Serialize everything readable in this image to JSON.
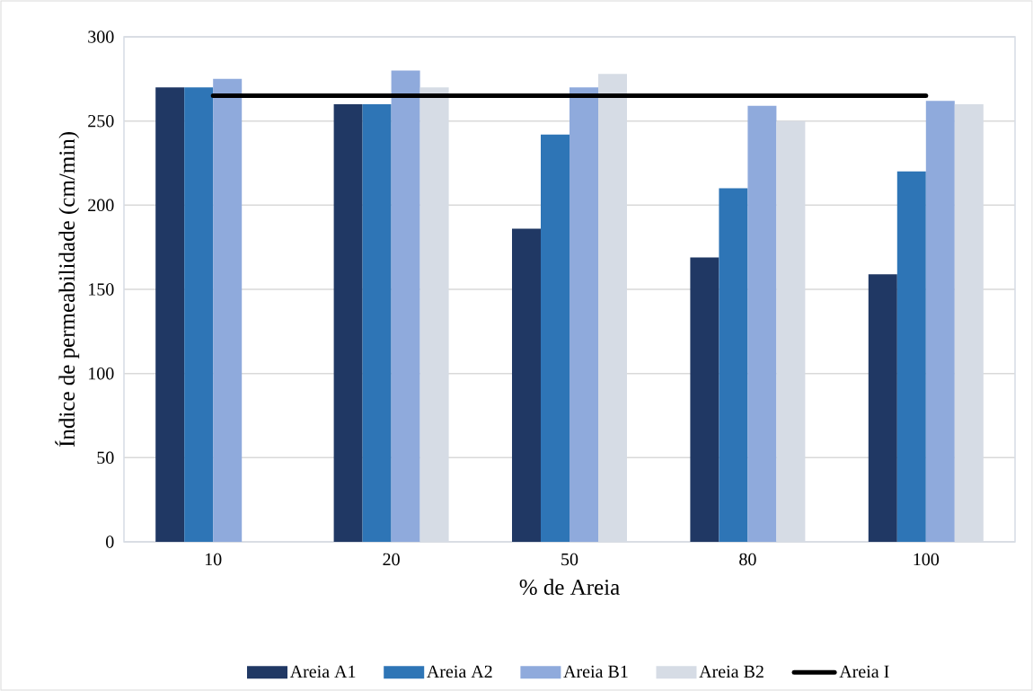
{
  "chart_data": {
    "type": "bar",
    "xlabel": "% de Areia",
    "ylabel": "Índice de permeabilidade (cm/min)",
    "categories": [
      "10",
      "20",
      "50",
      "80",
      "100"
    ],
    "ylim": [
      0,
      300
    ],
    "yticks": [
      0,
      50,
      100,
      150,
      200,
      250,
      300
    ],
    "grid": "y",
    "legend": "bottom",
    "series": [
      {
        "name": "Areia A1",
        "color": "#203864",
        "values": [
          270,
          260,
          186,
          169,
          159
        ]
      },
      {
        "name": "Areia A2",
        "color": "#2e75b6",
        "values": [
          270,
          260,
          242,
          210,
          220
        ]
      },
      {
        "name": "Areia B1",
        "color": "#8faadc",
        "values": [
          275,
          280,
          270,
          259,
          262
        ]
      },
      {
        "name": "Areia B2",
        "color": "#d6dce5",
        "values": [
          null,
          270,
          278,
          250,
          260
        ]
      },
      {
        "name": "Areia I",
        "type": "line",
        "color": "#000000",
        "values": [
          265,
          265,
          265,
          265,
          265
        ]
      }
    ]
  }
}
